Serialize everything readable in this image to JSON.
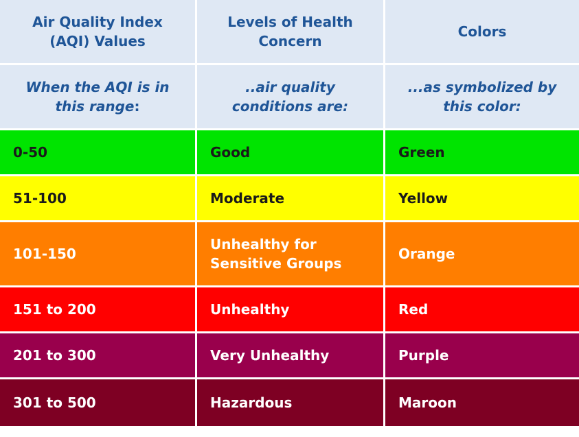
{
  "headers": {
    "aqi": "Air Quality Index (AQI) Values",
    "levels": "Levels of Health Concern",
    "colors": "Colors"
  },
  "subheaders": {
    "aqi": "When the AQI is in this range",
    "aqi_suffix": ":",
    "levels": "..air quality conditions are:",
    "colors": "...as symbolized by this color:"
  },
  "rows": [
    {
      "range": "0-50",
      "level": "Good",
      "color": "Green",
      "bg": "#00e400",
      "text": "#1a1a1a"
    },
    {
      "range": "51-100",
      "level": "Moderate",
      "color": "Yellow",
      "bg": "#ffff00",
      "text": "#1a1a1a"
    },
    {
      "range": "101-150",
      "level": "Unhealthy for Sensitive Groups",
      "color": "Orange",
      "bg": "#ff7e00",
      "text": "#ffffff"
    },
    {
      "range": "151 to 200",
      "level": "Unhealthy",
      "color": "Red",
      "bg": "#ff0000",
      "text": "#ffffff"
    },
    {
      "range": "201 to 300",
      "level": "Very Unhealthy",
      "color": "Purple",
      "bg": "#99004c",
      "text": "#ffffff"
    },
    {
      "range": "301 to 500",
      "level": "Hazardous",
      "color": "Maroon",
      "bg": "#7e0023",
      "text": "#ffffff"
    }
  ]
}
